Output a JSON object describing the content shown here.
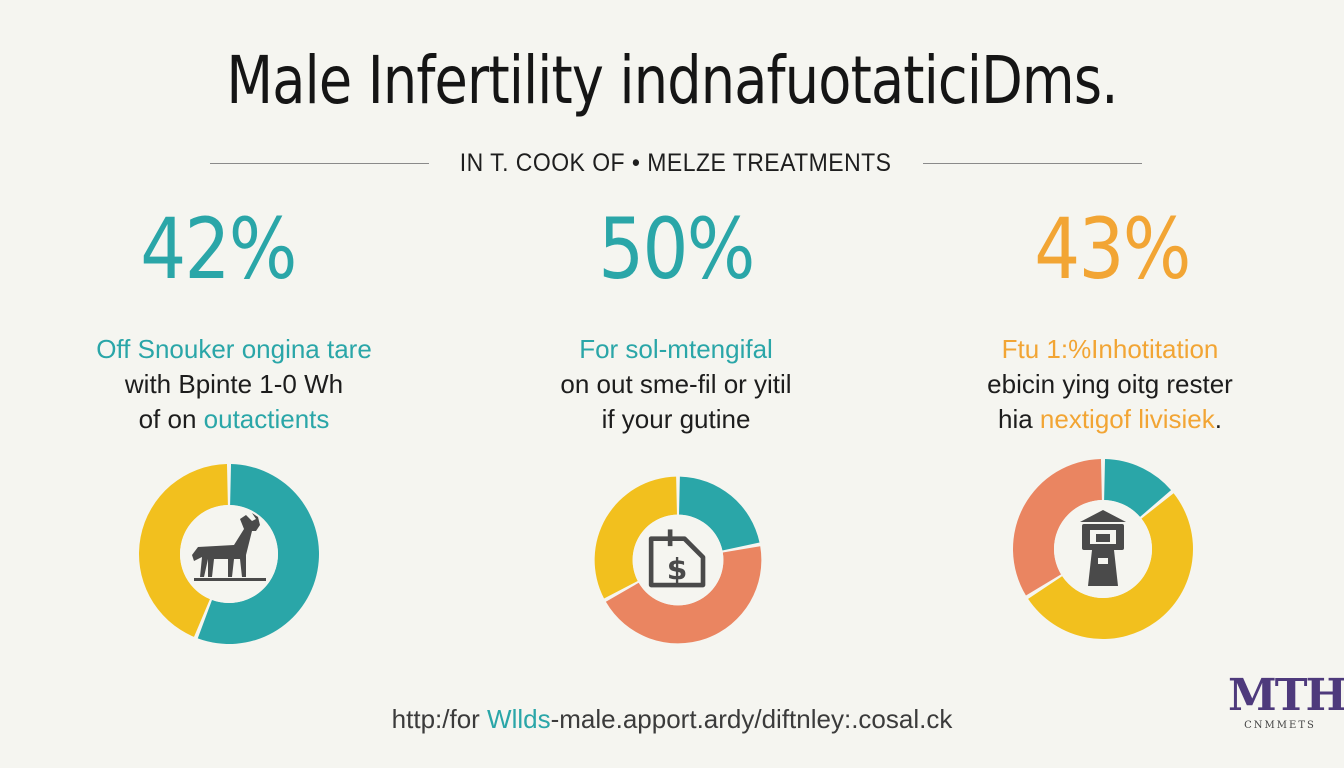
{
  "header": {
    "title": "Male Infertility  indnafuotaticiDms.",
    "subtitle": "IN T.  COOK OF • MELZE TREATMENTS"
  },
  "colors": {
    "teal": "#2aa6a8",
    "yellow": "#f2c01e",
    "orange": "#ea8561",
    "amber": "#f2a534",
    "icon": "#4a4a4a"
  },
  "chart_data": [
    {
      "type": "pie",
      "stat_label": "42%",
      "stat_color": "#2aa6a8",
      "description": {
        "line1": "Off Snouker ongina tare",
        "line2": "with Bpinte 1-0 Wh",
        "line3_a": "of on ",
        "line3_b": "outactients"
      },
      "icon": "deer-icon",
      "slices": [
        {
          "value": 56,
          "color": "#2aa6a8"
        },
        {
          "value": 44,
          "color": "#f2c01e"
        }
      ]
    },
    {
      "type": "pie",
      "stat_label": "50%",
      "stat_color": "#2aa6a8",
      "description": {
        "line1": "For sol-mtengifal",
        "line2": "on out sme-fil or yitil",
        "line3_a": "if your gutine",
        "line3_b": ""
      },
      "icon": "price-tag-dollar-icon",
      "slices": [
        {
          "value": 22,
          "color": "#2aa6a8"
        },
        {
          "value": 45,
          "color": "#ea8561"
        },
        {
          "value": 33,
          "color": "#f2c01e"
        }
      ]
    },
    {
      "type": "pie",
      "stat_label": "43%",
      "stat_color": "#f2a534",
      "description": {
        "line1": "Ftu 1:%Inhotitation",
        "line2": "ebicin ying oitg rester",
        "line3_a": "hia ",
        "line3_b": "nextigof livisiek",
        "line3_c": "."
      },
      "icon": "tower-icon",
      "slices": [
        {
          "value": 14,
          "color": "#2aa6a8"
        },
        {
          "value": 52,
          "color": "#f2c01e"
        },
        {
          "value": 34,
          "color": "#ea8561"
        }
      ]
    }
  ],
  "footer": {
    "url_a": "http:/for ",
    "url_b": "Wllds",
    "url_c": "-male.apport.ardy/diftnley:.cosal.ck"
  },
  "logo": {
    "mark": "MTH",
    "sub": "CNMMETS"
  }
}
